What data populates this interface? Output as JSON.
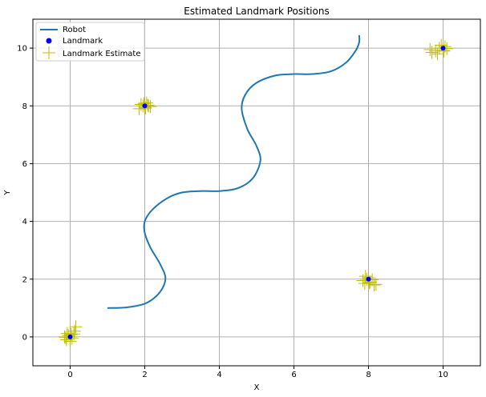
{
  "chart_data": {
    "type": "line",
    "title": "Estimated Landmark Positions",
    "xlabel": "X",
    "ylabel": "Y",
    "xlim": [
      -1,
      11
    ],
    "ylim": [
      -1,
      11
    ],
    "xticks": [
      0,
      2,
      4,
      6,
      8,
      10
    ],
    "yticks": [
      0,
      2,
      4,
      6,
      8,
      10
    ],
    "grid": true,
    "legend_position": "top-left",
    "colors": {
      "robot": "#1f77b4",
      "landmark": "#0000ff",
      "estimate": "#bfbf00",
      "grid": "#b0b0b0"
    },
    "series": [
      {
        "name": "Robot",
        "kind": "line",
        "x": [
          1.0,
          1.5,
          2.0,
          2.3,
          2.5,
          2.55,
          2.4,
          2.15,
          2.0,
          2.0,
          2.2,
          2.6,
          3.0,
          3.5,
          4.0,
          4.5,
          4.9,
          5.1,
          5.0,
          4.75,
          4.6,
          4.7,
          5.0,
          5.5,
          6.0,
          6.5,
          7.0,
          7.4,
          7.65,
          7.75,
          7.75
        ],
        "y": [
          1.0,
          1.02,
          1.15,
          1.4,
          1.75,
          2.1,
          2.55,
          3.1,
          3.6,
          4.0,
          4.4,
          4.8,
          5.0,
          5.05,
          5.05,
          5.15,
          5.5,
          6.1,
          6.6,
          7.2,
          7.9,
          8.4,
          8.8,
          9.05,
          9.1,
          9.1,
          9.2,
          9.5,
          9.9,
          10.2,
          10.45
        ]
      },
      {
        "name": "Landmark",
        "kind": "points",
        "x": [
          0,
          2,
          8,
          10
        ],
        "y": [
          0,
          8,
          2,
          10
        ]
      },
      {
        "name": "Landmark Estimate",
        "kind": "plus",
        "x": [
          -0.15,
          -0.1,
          -0.05,
          0.0,
          0.05,
          0.1,
          0.0,
          -0.08,
          0.12,
          0.15,
          -0.12,
          0.03,
          1.85,
          1.95,
          2.0,
          2.05,
          2.1,
          2.15,
          1.9,
          2.02,
          2.08,
          1.98,
          7.85,
          7.9,
          7.95,
          8.0,
          8.05,
          8.1,
          8.15,
          7.92,
          8.02,
          8.2,
          9.65,
          9.7,
          9.8,
          9.9,
          10.0,
          10.05,
          10.1,
          9.85,
          9.95,
          10.02
        ],
        "y": [
          0.0,
          -0.1,
          0.05,
          0.0,
          -0.05,
          0.1,
          -0.15,
          0.12,
          0.2,
          0.35,
          -0.02,
          0.08,
          7.9,
          8.0,
          7.95,
          8.1,
          8.0,
          7.98,
          8.05,
          7.92,
          8.02,
          8.08,
          1.95,
          1.85,
          2.0,
          2.05,
          1.9,
          1.98,
          1.8,
          2.1,
          1.88,
          1.82,
          9.95,
          9.85,
          9.9,
          10.0,
          9.92,
          10.05,
          9.98,
          9.8,
          10.1,
          9.9
        ]
      }
    ]
  }
}
